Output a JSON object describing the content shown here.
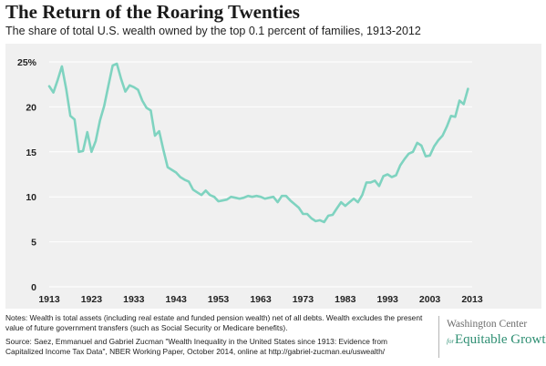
{
  "header": {
    "title": "The Return of the Roaring Twenties",
    "subtitle": "The share of total U.S. wealth owned by the top 0.1 percent of families, 1913-2012"
  },
  "notes": {
    "line1": "Notes: Wealth is total assets (including real estate and funded pension wealth) net of all debts. Wealth excludes the present value of future government transfers (such as Social Security or Medicare benefits).",
    "line2": "Source: Saez, Emmanuel and Gabriel Zucman \"Wealth Inequality in the United States since 1913: Evidence from Capitalized Income Tax Data\", NBER Working Paper, October 2014, online at http://gabriel-zucman.eu/uswealth/"
  },
  "brand": {
    "line1": "Washington Center",
    "for": "for",
    "line2": "Equitable Growth"
  },
  "colors": {
    "line": "#7fd3c0",
    "background": "#f0f0f0",
    "grid": "#ffffff",
    "brand_green": "#2f8f73"
  },
  "chart_data": {
    "type": "line",
    "title": "The Return of the Roaring Twenties",
    "xlabel": "",
    "ylabel": "",
    "xlim": [
      1913,
      2013
    ],
    "ylim": [
      0,
      25
    ],
    "grid": true,
    "x_ticks": [
      1913,
      1923,
      1933,
      1943,
      1953,
      1963,
      1973,
      1983,
      1993,
      2003,
      2013
    ],
    "y_ticks": [
      0,
      5,
      10,
      15,
      20,
      25
    ],
    "y_tick_labels": [
      "0",
      "5",
      "10",
      "15",
      "20",
      "25%"
    ],
    "series": [
      {
        "name": "",
        "x": [
          1913,
          1914,
          1915,
          1916,
          1917,
          1918,
          1919,
          1920,
          1921,
          1922,
          1923,
          1924,
          1925,
          1926,
          1927,
          1928,
          1929,
          1930,
          1931,
          1932,
          1933,
          1934,
          1935,
          1936,
          1937,
          1938,
          1939,
          1940,
          1941,
          1942,
          1943,
          1944,
          1945,
          1946,
          1947,
          1948,
          1949,
          1950,
          1951,
          1952,
          1953,
          1954,
          1955,
          1956,
          1957,
          1958,
          1959,
          1960,
          1961,
          1962,
          1963,
          1964,
          1965,
          1966,
          1967,
          1968,
          1969,
          1970,
          1971,
          1972,
          1973,
          1974,
          1975,
          1976,
          1977,
          1978,
          1979,
          1980,
          1981,
          1982,
          1983,
          1984,
          1985,
          1986,
          1987,
          1988,
          1989,
          1990,
          1991,
          1992,
          1993,
          1994,
          1995,
          1996,
          1997,
          1998,
          1999,
          2000,
          2001,
          2002,
          2003,
          2004,
          2005,
          2006,
          2007,
          2008,
          2009,
          2010,
          2011,
          2012
        ],
        "y": [
          22.3,
          21.6,
          23.0,
          24.5,
          22.0,
          19.0,
          18.6,
          15.0,
          15.1,
          17.2,
          15.0,
          16.2,
          18.5,
          20.1,
          22.4,
          24.6,
          24.8,
          23.1,
          21.7,
          22.4,
          22.2,
          21.9,
          20.7,
          19.9,
          19.6,
          16.8,
          17.3,
          15.2,
          13.3,
          13.0,
          12.7,
          12.2,
          11.9,
          11.7,
          10.8,
          10.5,
          10.2,
          10.7,
          10.2,
          10.0,
          9.5,
          9.6,
          9.7,
          10.0,
          9.9,
          9.8,
          9.9,
          10.1,
          10.0,
          10.1,
          10.0,
          9.8,
          9.9,
          10.0,
          9.4,
          10.1,
          10.1,
          9.6,
          9.2,
          8.8,
          8.1,
          8.1,
          7.6,
          7.3,
          7.4,
          7.2,
          7.9,
          8.0,
          8.7,
          9.4,
          9.0,
          9.4,
          9.8,
          9.4,
          10.2,
          11.6,
          11.6,
          11.8,
          11.2,
          12.3,
          12.5,
          12.2,
          12.4,
          13.5,
          14.2,
          14.8,
          15.0,
          16.0,
          15.7,
          14.5,
          14.6,
          15.6,
          16.3,
          16.8,
          17.8,
          19.0,
          18.9,
          20.7,
          20.3,
          22.0
        ]
      }
    ]
  }
}
